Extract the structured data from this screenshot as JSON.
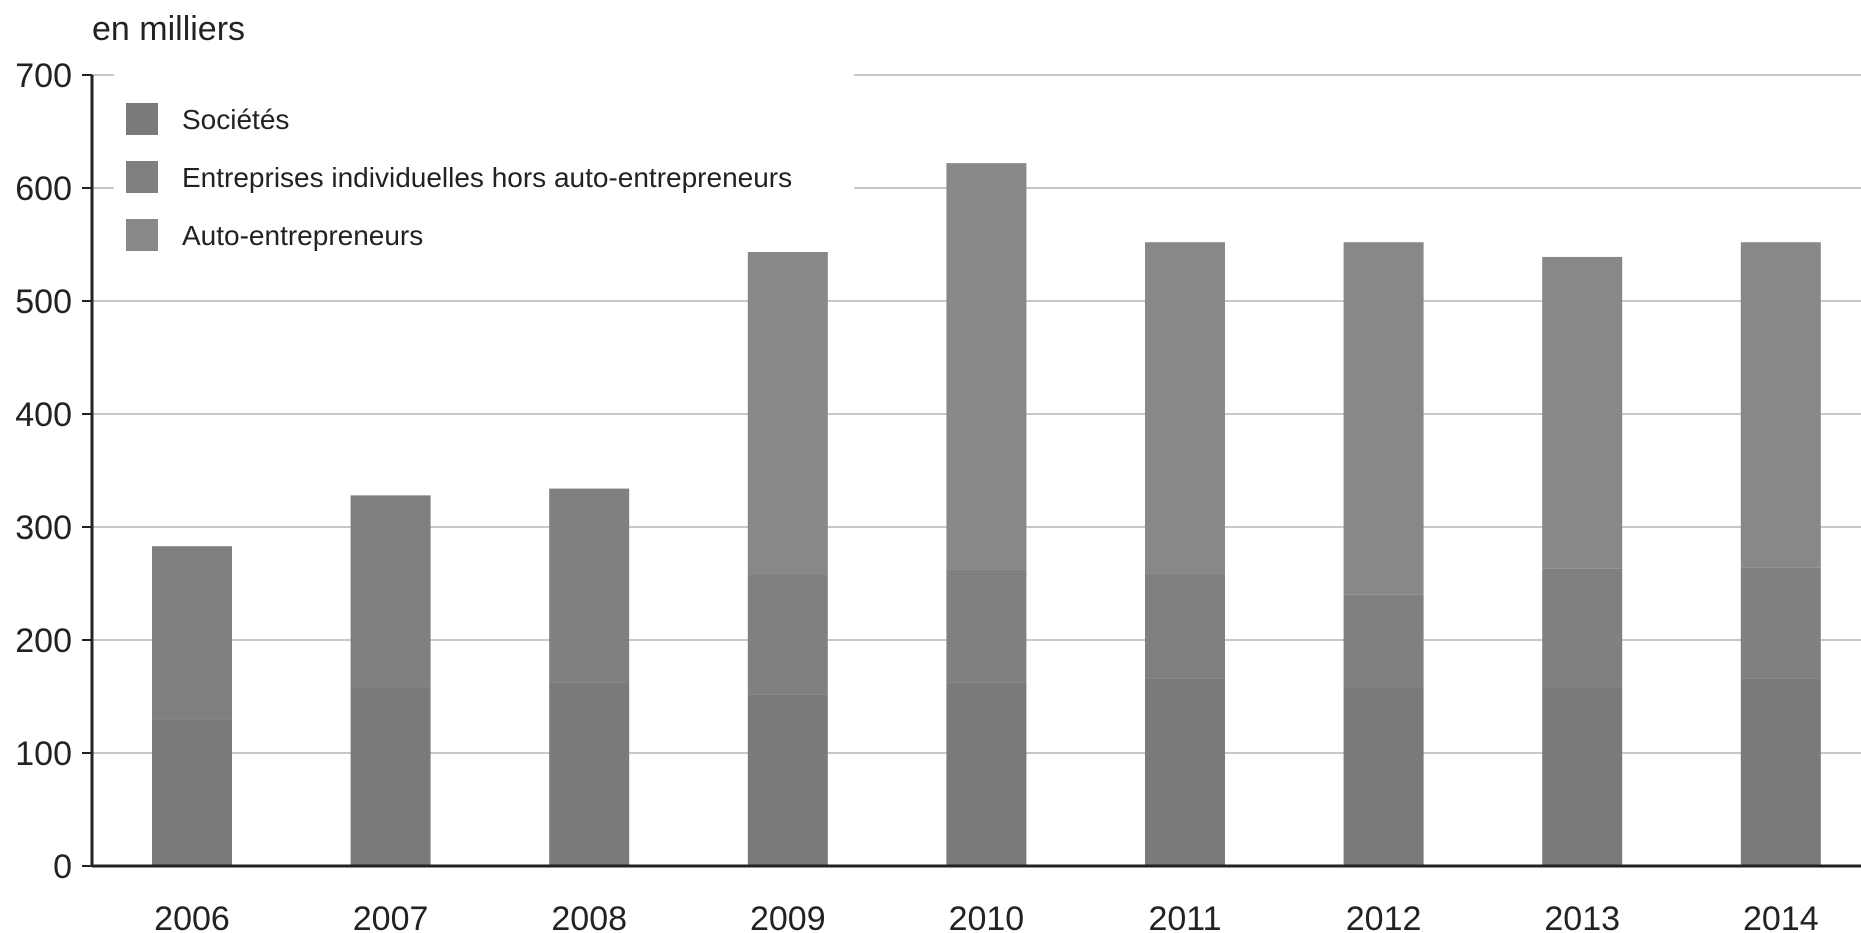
{
  "chart_data": {
    "type": "bar",
    "stacked": true,
    "unit_label": "en milliers",
    "title": "",
    "xlabel": "",
    "ylabel": "",
    "categories": [
      "2006",
      "2007",
      "2008",
      "2009",
      "2010",
      "2011",
      "2012",
      "2013",
      "2014"
    ],
    "ylim": [
      0,
      700
    ],
    "yticks": [
      "0",
      "100",
      "200",
      "300",
      "400",
      "500",
      "600",
      "700"
    ],
    "grid": true,
    "legend_position": "top-left",
    "series": [
      {
        "name": "Sociétés",
        "color": "#7a7a7a",
        "values": [
          130,
          158,
          162,
          152,
          162,
          166,
          158,
          158,
          166
        ]
      },
      {
        "name": "Entreprises individuelles hors auto-entrepreneurs",
        "color": "#808080",
        "values": [
          153,
          170,
          172,
          106,
          100,
          92,
          82,
          105,
          98
        ]
      },
      {
        "name": "Auto-entrepreneurs",
        "color": "#888888",
        "values": [
          0,
          0,
          0,
          320,
          360,
          294,
          312,
          276,
          288
        ]
      }
    ]
  }
}
